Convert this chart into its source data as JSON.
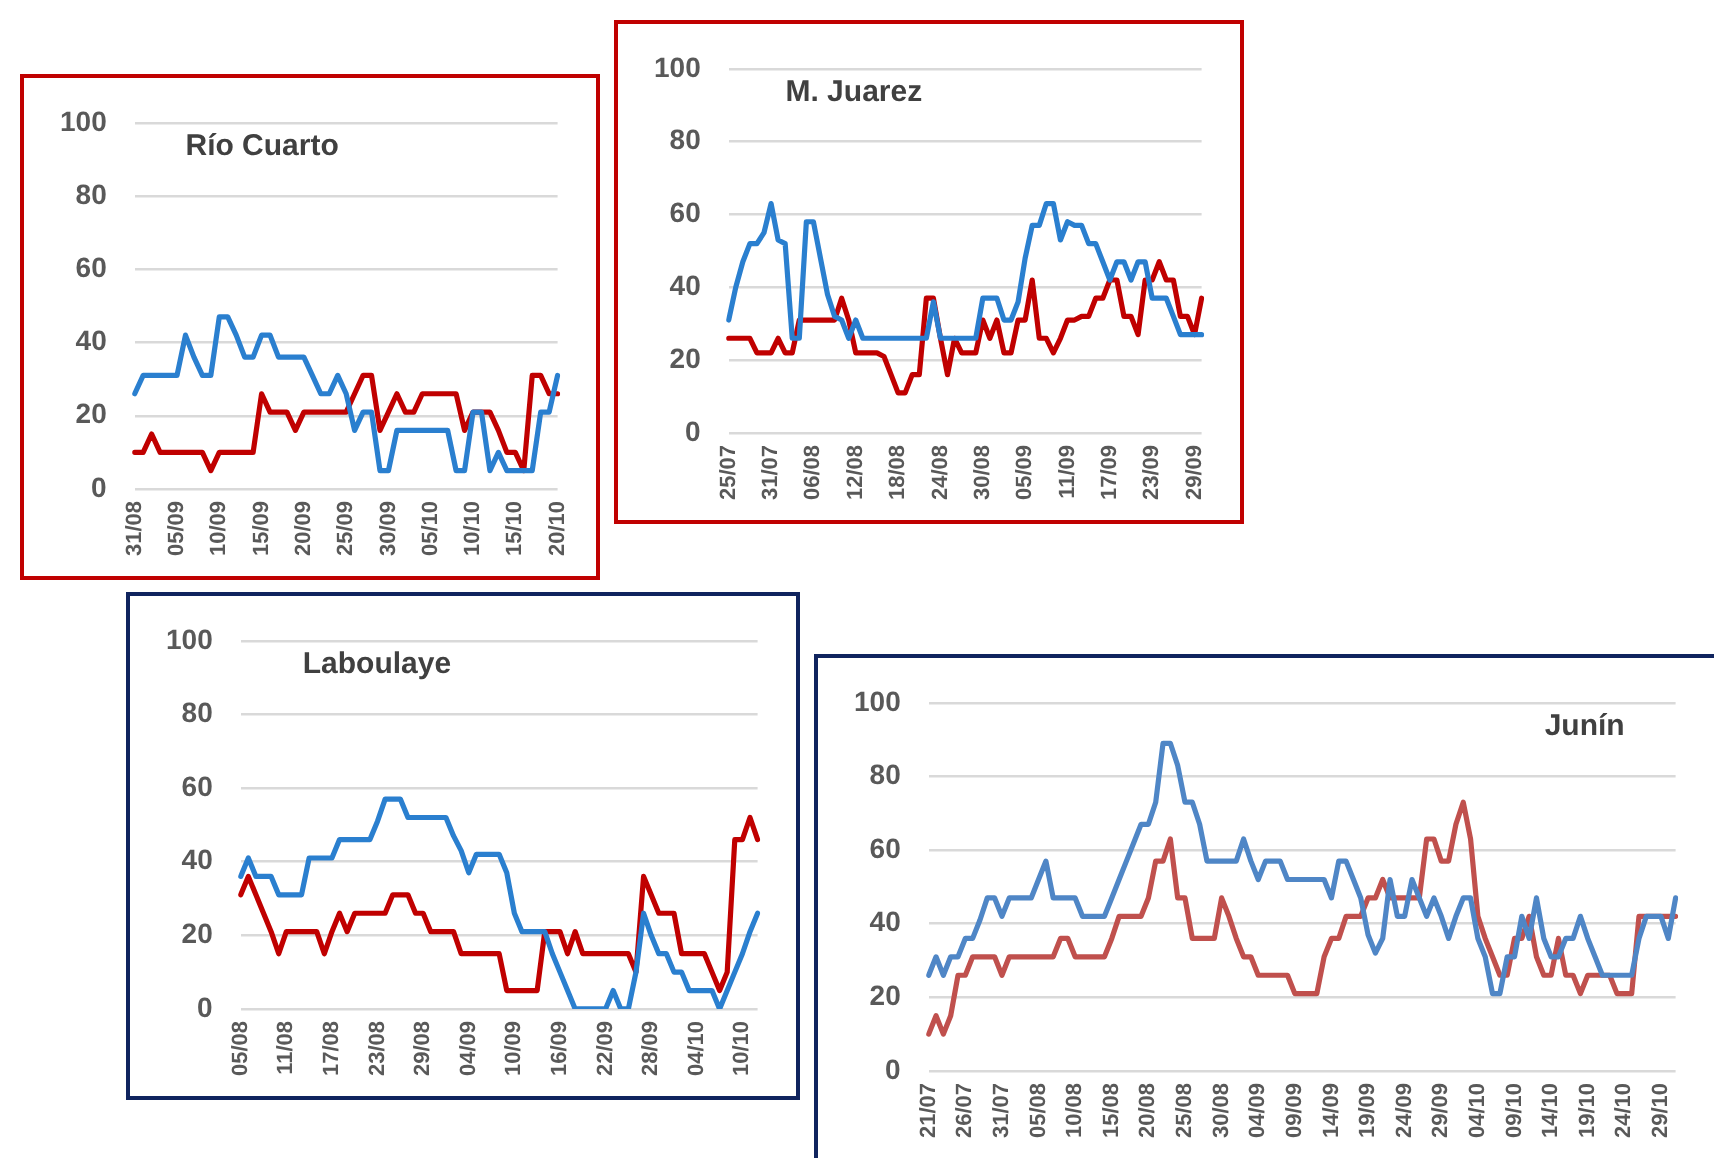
{
  "chart_data": [
    {
      "type": "line",
      "title": "Río Cuarto",
      "categories": [
        "31/08",
        null,
        null,
        null,
        null,
        "05/09",
        null,
        null,
        null,
        null,
        "10/09",
        null,
        null,
        null,
        null,
        "15/09",
        null,
        null,
        null,
        null,
        "20/09",
        null,
        null,
        null,
        null,
        "25/09",
        null,
        null,
        null,
        null,
        "30/09",
        null,
        null,
        null,
        null,
        "05/10",
        null,
        null,
        null,
        null,
        "10/10",
        null,
        null,
        null,
        null,
        "15/10",
        null,
        null,
        null,
        null,
        "20/10"
      ],
      "series": [
        {
          "color": "#2a7fcf",
          "values": [
            26,
            31,
            31,
            31,
            31,
            31,
            42,
            36,
            31,
            31,
            47,
            47,
            42,
            36,
            36,
            42,
            42,
            36,
            36,
            36,
            36,
            31,
            26,
            26,
            31,
            26,
            16,
            21,
            21,
            5,
            5,
            16,
            16,
            16,
            16,
            16,
            16,
            16,
            5,
            5,
            21,
            21,
            5,
            10,
            5,
            5,
            5,
            5,
            21,
            21,
            31
          ]
        },
        {
          "color": "#c00000",
          "values": [
            10,
            10,
            15,
            10,
            10,
            10,
            10,
            10,
            10,
            5,
            10,
            10,
            10,
            10,
            10,
            26,
            21,
            21,
            21,
            16,
            21,
            21,
            21,
            21,
            21,
            21,
            26,
            31,
            31,
            16,
            21,
            26,
            21,
            21,
            26,
            26,
            26,
            26,
            26,
            16,
            21,
            21,
            21,
            16,
            10,
            10,
            5,
            31,
            31,
            26,
            26
          ]
        }
      ],
      "ylim": [
        0,
        100
      ],
      "yticks": [
        0,
        20,
        40,
        60,
        80,
        100
      ],
      "grid": "y"
    },
    {
      "type": "line",
      "title": "M. Juarez",
      "categories": [
        "25/07",
        null,
        null,
        null,
        null,
        null,
        "31/07",
        null,
        null,
        null,
        null,
        null,
        "06/08",
        null,
        null,
        null,
        null,
        null,
        "12/08",
        null,
        null,
        null,
        null,
        null,
        "18/08",
        null,
        null,
        null,
        null,
        null,
        "24/08",
        null,
        null,
        null,
        null,
        null,
        "30/08",
        null,
        null,
        null,
        null,
        null,
        "05/09",
        null,
        null,
        null,
        null,
        null,
        "11/09",
        null,
        null,
        null,
        null,
        null,
        "17/09",
        null,
        null,
        null,
        null,
        null,
        "23/09",
        null,
        null,
        null,
        null,
        null,
        "29/09",
        null
      ],
      "series": [
        {
          "color": "#2a7fcf",
          "values": [
            31,
            40,
            47,
            52,
            52,
            55,
            63,
            53,
            52,
            26,
            26,
            58,
            58,
            48,
            38,
            32,
            31,
            26,
            31,
            26,
            26,
            26,
            26,
            26,
            26,
            26,
            26,
            26,
            26,
            36,
            26,
            26,
            26,
            26,
            26,
            26,
            37,
            37,
            37,
            31,
            31,
            36,
            48,
            57,
            57,
            63,
            63,
            53,
            58,
            57,
            57,
            52,
            52,
            47,
            42,
            47,
            47,
            42,
            47,
            47,
            37,
            37,
            37,
            32,
            27,
            27,
            27,
            27
          ]
        },
        {
          "color": "#c00000",
          "values": [
            26,
            26,
            26,
            26,
            22,
            22,
            22,
            26,
            22,
            22,
            31,
            31,
            31,
            31,
            31,
            31,
            37,
            31,
            22,
            22,
            22,
            22,
            21,
            16,
            11,
            11,
            16,
            16,
            37,
            37,
            26,
            16,
            26,
            22,
            22,
            22,
            31,
            26,
            31,
            22,
            22,
            31,
            31,
            42,
            26,
            26,
            22,
            26,
            31,
            31,
            32,
            32,
            37,
            37,
            42,
            42,
            32,
            32,
            27,
            42,
            42,
            47,
            42,
            42,
            32,
            32,
            27,
            37
          ]
        }
      ],
      "ylim": [
        0,
        100
      ],
      "yticks": [
        0,
        20,
        40,
        60,
        80,
        100
      ],
      "grid": "y"
    },
    {
      "type": "line",
      "title": "Laboulaye",
      "categories": [
        "05/08",
        null,
        null,
        null,
        null,
        null,
        "11/08",
        null,
        null,
        null,
        null,
        null,
        "17/08",
        null,
        null,
        null,
        null,
        null,
        "23/08",
        null,
        null,
        null,
        null,
        null,
        "29/08",
        null,
        null,
        null,
        null,
        null,
        "04/09",
        null,
        null,
        null,
        null,
        null,
        "10/09",
        null,
        null,
        null,
        null,
        null,
        "16/09",
        null,
        null,
        null,
        null,
        null,
        "22/09",
        null,
        null,
        null,
        null,
        null,
        "28/09",
        null,
        null,
        null,
        null,
        null,
        "04/10",
        null,
        null,
        null,
        null,
        null,
        "10/10",
        null,
        null
      ],
      "series": [
        {
          "color": "#2a7fcf",
          "values": [
            36,
            41,
            36,
            36,
            36,
            31,
            31,
            31,
            31,
            41,
            41,
            41,
            41,
            46,
            46,
            46,
            46,
            46,
            51,
            57,
            57,
            57,
            52,
            52,
            52,
            52,
            52,
            52,
            47,
            43,
            37,
            42,
            42,
            42,
            42,
            37,
            26,
            21,
            21,
            21,
            21,
            15,
            10,
            5,
            0,
            0,
            0,
            0,
            0,
            5,
            0,
            0,
            10,
            26,
            20,
            15,
            15,
            10,
            10,
            5,
            5,
            5,
            5,
            0,
            5,
            10,
            15,
            21,
            26
          ]
        },
        {
          "color": "#c00000",
          "values": [
            31,
            36,
            31,
            26,
            21,
            15,
            21,
            21,
            21,
            21,
            21,
            15,
            21,
            26,
            21,
            26,
            26,
            26,
            26,
            26,
            31,
            31,
            31,
            26,
            26,
            21,
            21,
            21,
            21,
            15,
            15,
            15,
            15,
            15,
            15,
            5,
            5,
            5,
            5,
            5,
            21,
            21,
            21,
            15,
            21,
            15,
            15,
            15,
            15,
            15,
            15,
            15,
            10,
            36,
            31,
            26,
            26,
            26,
            15,
            15,
            15,
            15,
            10,
            5,
            10,
            46,
            46,
            52,
            46
          ]
        }
      ],
      "ylim": [
        0,
        100
      ],
      "yticks": [
        0,
        20,
        40,
        60,
        80,
        100
      ],
      "grid": "y"
    },
    {
      "type": "line",
      "title": "Junín",
      "categories": [
        "21/07",
        null,
        null,
        null,
        null,
        "26/07",
        null,
        null,
        null,
        null,
        "31/07",
        null,
        null,
        null,
        null,
        "05/08",
        null,
        null,
        null,
        null,
        "10/08",
        null,
        null,
        null,
        null,
        "15/08",
        null,
        null,
        null,
        null,
        "20/08",
        null,
        null,
        null,
        null,
        "25/08",
        null,
        null,
        null,
        null,
        "30/08",
        null,
        null,
        null,
        null,
        "04/09",
        null,
        null,
        null,
        null,
        "09/09",
        null,
        null,
        null,
        null,
        "14/09",
        null,
        null,
        null,
        null,
        "19/09",
        null,
        null,
        null,
        null,
        "24/09",
        null,
        null,
        null,
        null,
        "29/09",
        null,
        null,
        null,
        null,
        "04/10",
        null,
        null,
        null,
        null,
        "09/10",
        null,
        null,
        null,
        null,
        "14/10",
        null,
        null,
        null,
        null,
        "19/10",
        null,
        null,
        null,
        null,
        "24/10",
        null,
        null,
        null,
        null,
        "29/10",
        null,
        null
      ],
      "series": [
        {
          "color": "#4f86c6",
          "values": [
            26,
            31,
            26,
            31,
            31,
            36,
            36,
            41,
            47,
            47,
            42,
            47,
            47,
            47,
            47,
            52,
            57,
            47,
            47,
            47,
            47,
            42,
            42,
            42,
            42,
            47,
            52,
            57,
            62,
            67,
            67,
            73,
            89,
            89,
            83,
            73,
            73,
            67,
            57,
            57,
            57,
            57,
            57,
            63,
            57,
            52,
            57,
            57,
            57,
            52,
            52,
            52,
            52,
            52,
            52,
            47,
            57,
            57,
            52,
            47,
            37,
            32,
            36,
            52,
            42,
            42,
            52,
            47,
            42,
            47,
            42,
            36,
            42,
            47,
            47,
            36,
            31,
            21,
            21,
            31,
            31,
            42,
            36,
            47,
            36,
            31,
            31,
            36,
            36,
            42,
            36,
            31,
            26,
            26,
            26,
            26,
            26,
            36,
            42,
            42,
            42,
            36,
            47
          ]
        },
        {
          "color": "#c0504d",
          "values": [
            10,
            15,
            10,
            15,
            26,
            26,
            31,
            31,
            31,
            31,
            26,
            31,
            31,
            31,
            31,
            31,
            31,
            31,
            36,
            36,
            31,
            31,
            31,
            31,
            31,
            36,
            42,
            42,
            42,
            42,
            47,
            57,
            57,
            63,
            47,
            47,
            36,
            36,
            36,
            36,
            47,
            42,
            36,
            31,
            31,
            26,
            26,
            26,
            26,
            26,
            21,
            21,
            21,
            21,
            31,
            36,
            36,
            42,
            42,
            42,
            47,
            47,
            52,
            47,
            47,
            47,
            47,
            47,
            63,
            63,
            57,
            57,
            67,
            73,
            63,
            42,
            36,
            31,
            26,
            26,
            36,
            36,
            42,
            31,
            26,
            26,
            36,
            26,
            26,
            21,
            26,
            26,
            26,
            26,
            21,
            21,
            21,
            42,
            42,
            42,
            42,
            42,
            42
          ]
        }
      ],
      "ylim": [
        0,
        100
      ],
      "yticks": [
        0,
        20,
        40,
        60,
        80,
        100
      ],
      "grid": "y"
    }
  ]
}
